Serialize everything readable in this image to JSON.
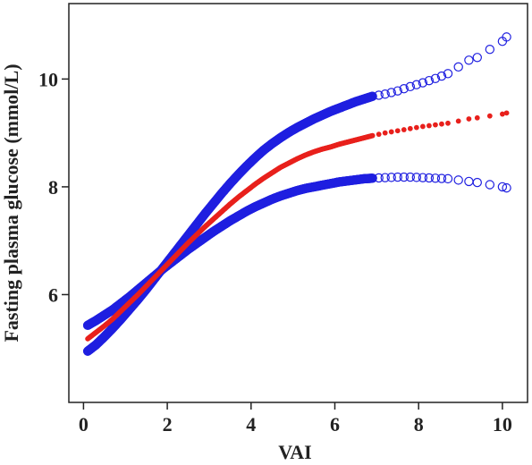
{
  "chart_data": {
    "type": "scatter",
    "title": "",
    "xlabel": "VAI",
    "ylabel": "Fasting plasma glucose (mmol/L)",
    "xlim": [
      -0.35,
      10.6
    ],
    "ylim": [
      4.0,
      11.4
    ],
    "x_ticks": [
      "0",
      "2",
      "4",
      "6",
      "8",
      "10"
    ],
    "y_ticks": [
      "6",
      "8",
      "10"
    ],
    "grid": false,
    "legend": "none",
    "series": [
      {
        "role": "estimate",
        "color": "#e8201c",
        "marker": "filled-dot",
        "points": [
          [
            0.1,
            5.18
          ],
          [
            0.3,
            5.3
          ],
          [
            0.5,
            5.42
          ],
          [
            0.7,
            5.55
          ],
          [
            0.9,
            5.7
          ],
          [
            1.1,
            5.85
          ],
          [
            1.3,
            6.0
          ],
          [
            1.5,
            6.16
          ],
          [
            1.7,
            6.32
          ],
          [
            1.9,
            6.48
          ],
          [
            2.1,
            6.64
          ],
          [
            2.3,
            6.8
          ],
          [
            2.5,
            6.96
          ],
          [
            2.7,
            7.11
          ],
          [
            2.9,
            7.26
          ],
          [
            3.1,
            7.4
          ],
          [
            3.3,
            7.54
          ],
          [
            3.5,
            7.68
          ],
          [
            3.7,
            7.81
          ],
          [
            3.9,
            7.93
          ],
          [
            4.1,
            8.05
          ],
          [
            4.3,
            8.16
          ],
          [
            4.5,
            8.26
          ],
          [
            4.7,
            8.36
          ],
          [
            4.9,
            8.44
          ],
          [
            5.1,
            8.52
          ],
          [
            5.3,
            8.59
          ],
          [
            5.5,
            8.65
          ],
          [
            5.7,
            8.7
          ],
          [
            5.9,
            8.74
          ],
          [
            6.1,
            8.79
          ],
          [
            6.3,
            8.83
          ],
          [
            6.5,
            8.87
          ],
          [
            6.7,
            8.91
          ],
          [
            6.9,
            8.95
          ],
          [
            7.2,
            9.0
          ],
          [
            7.5,
            9.04
          ],
          [
            7.8,
            9.08
          ],
          [
            8.1,
            9.12
          ],
          [
            8.4,
            9.15
          ],
          [
            8.7,
            9.18
          ],
          [
            9.2,
            9.26
          ],
          [
            9.4,
            9.28
          ],
          [
            10.0,
            9.35
          ],
          [
            10.1,
            9.37
          ]
        ]
      },
      {
        "role": "upper-confidence-bound",
        "color": "#1f1fe0",
        "marker": "open-circle",
        "points": [
          [
            0.1,
            4.95
          ],
          [
            0.3,
            5.07
          ],
          [
            0.5,
            5.22
          ],
          [
            0.7,
            5.38
          ],
          [
            0.9,
            5.55
          ],
          [
            1.1,
            5.73
          ],
          [
            1.3,
            5.91
          ],
          [
            1.5,
            6.1
          ],
          [
            1.7,
            6.3
          ],
          [
            1.9,
            6.5
          ],
          [
            2.1,
            6.7
          ],
          [
            2.3,
            6.9
          ],
          [
            2.5,
            7.1
          ],
          [
            2.7,
            7.3
          ],
          [
            2.9,
            7.5
          ],
          [
            3.1,
            7.69
          ],
          [
            3.3,
            7.88
          ],
          [
            3.5,
            8.06
          ],
          [
            3.7,
            8.23
          ],
          [
            3.9,
            8.39
          ],
          [
            4.1,
            8.54
          ],
          [
            4.3,
            8.68
          ],
          [
            4.5,
            8.8
          ],
          [
            4.7,
            8.91
          ],
          [
            4.9,
            9.01
          ],
          [
            5.1,
            9.1
          ],
          [
            5.3,
            9.18
          ],
          [
            5.5,
            9.26
          ],
          [
            5.7,
            9.33
          ],
          [
            5.9,
            9.4
          ],
          [
            6.1,
            9.46
          ],
          [
            6.3,
            9.52
          ],
          [
            6.5,
            9.58
          ],
          [
            6.7,
            9.63
          ],
          [
            6.9,
            9.68
          ],
          [
            7.2,
            9.72
          ],
          [
            7.5,
            9.78
          ],
          [
            7.8,
            9.86
          ],
          [
            8.1,
            9.93
          ],
          [
            8.4,
            10.01
          ],
          [
            8.7,
            10.1
          ],
          [
            9.2,
            10.35
          ],
          [
            9.4,
            10.4
          ],
          [
            10.0,
            10.7
          ],
          [
            10.1,
            10.78
          ]
        ]
      },
      {
        "role": "lower-confidence-bound",
        "color": "#1f1fe0",
        "marker": "open-circle",
        "points": [
          [
            0.1,
            5.43
          ],
          [
            0.3,
            5.52
          ],
          [
            0.5,
            5.62
          ],
          [
            0.7,
            5.72
          ],
          [
            0.9,
            5.84
          ],
          [
            1.1,
            5.96
          ],
          [
            1.3,
            6.09
          ],
          [
            1.5,
            6.22
          ],
          [
            1.7,
            6.35
          ],
          [
            1.9,
            6.48
          ],
          [
            2.1,
            6.6
          ],
          [
            2.3,
            6.72
          ],
          [
            2.5,
            6.84
          ],
          [
            2.7,
            6.95
          ],
          [
            2.9,
            7.06
          ],
          [
            3.1,
            7.17
          ],
          [
            3.3,
            7.27
          ],
          [
            3.5,
            7.37
          ],
          [
            3.7,
            7.46
          ],
          [
            3.9,
            7.55
          ],
          [
            4.1,
            7.63
          ],
          [
            4.3,
            7.7
          ],
          [
            4.5,
            7.77
          ],
          [
            4.7,
            7.83
          ],
          [
            4.9,
            7.88
          ],
          [
            5.1,
            7.93
          ],
          [
            5.3,
            7.97
          ],
          [
            5.5,
            8.0
          ],
          [
            5.7,
            8.03
          ],
          [
            5.9,
            8.06
          ],
          [
            6.1,
            8.09
          ],
          [
            6.3,
            8.11
          ],
          [
            6.5,
            8.13
          ],
          [
            6.7,
            8.15
          ],
          [
            6.9,
            8.16
          ],
          [
            7.2,
            8.17
          ],
          [
            7.5,
            8.18
          ],
          [
            7.8,
            8.18
          ],
          [
            8.1,
            8.17
          ],
          [
            8.4,
            8.16
          ],
          [
            8.7,
            8.15
          ],
          [
            9.2,
            8.1
          ],
          [
            9.4,
            8.08
          ],
          [
            10.0,
            8.0
          ],
          [
            10.1,
            7.98
          ]
        ]
      }
    ]
  }
}
